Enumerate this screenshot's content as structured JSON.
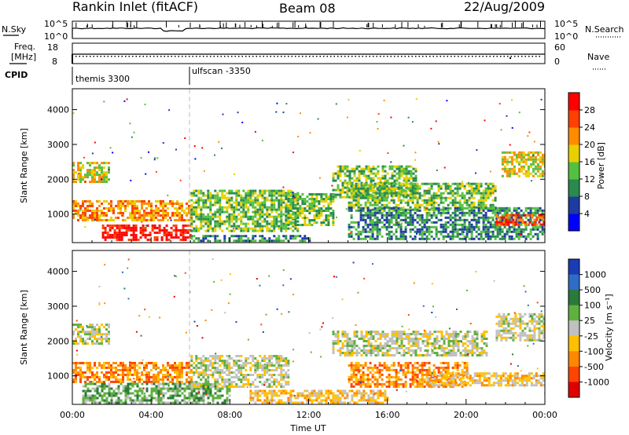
{
  "header": {
    "station": "Rankin Inlet (fitACF)",
    "beam": "Beam 08",
    "date": "22/Aug/2009"
  },
  "strip1": {
    "left_label": "N.Sky",
    "right_label": "N.Search",
    "left_ticks": [
      "10^5",
      "10^0"
    ],
    "right_ticks": [
      "10^5",
      "10^0"
    ]
  },
  "strip2": {
    "left_label_1": "Freq.",
    "left_label_2": "[MHz]",
    "right_label": "Nave",
    "left_ticks": [
      "18",
      "8"
    ],
    "right_ticks": [
      "60",
      "0"
    ]
  },
  "cpid": {
    "label": "CPID",
    "modes": [
      {
        "name": "themis 3300",
        "start_hour": 0
      },
      {
        "name": "ulfscan -3350",
        "start_hour": 6
      }
    ]
  },
  "chart_data": [
    {
      "type": "heatmap",
      "name": "Power",
      "ylabel": "Slant Range [km]",
      "xlabel": "",
      "xlim_hours": [
        0,
        24
      ],
      "ylim_km": [
        180,
        4600
      ],
      "y_ticks": [
        "1000",
        "2000",
        "3000",
        "4000"
      ],
      "colorbar_label": "Power [dB]",
      "colorbar_ticks": [
        "4",
        "8",
        "12",
        "16",
        "20",
        "24",
        "28"
      ],
      "colorbar_colors": [
        "#0000ff",
        "#1e3ca0",
        "#2a8a4e",
        "#55c040",
        "#e8d000",
        "#ff8c00",
        "#ff4000",
        "#ff0000"
      ],
      "echo_regions": [
        {
          "t0": 0.0,
          "t1": 1.8,
          "r0": 1900,
          "r1": 2500,
          "level": 16
        },
        {
          "t0": 0.0,
          "t1": 6.0,
          "r0": 850,
          "r1": 1400,
          "level": 20
        },
        {
          "t0": 1.5,
          "t1": 6.0,
          "r0": 250,
          "r1": 700,
          "level": 28
        },
        {
          "t0": 6.0,
          "t1": 11.5,
          "r0": 500,
          "r1": 1700,
          "level": 12
        },
        {
          "t0": 6.0,
          "t1": 12.0,
          "r0": 200,
          "r1": 400,
          "level": 8
        },
        {
          "t0": 10.8,
          "t1": 13.2,
          "r0": 700,
          "r1": 1600,
          "level": 12
        },
        {
          "t0": 13.2,
          "t1": 17.5,
          "r0": 1500,
          "r1": 2400,
          "level": 12
        },
        {
          "t0": 14.0,
          "t1": 21.5,
          "r0": 1100,
          "r1": 1900,
          "level": 12
        },
        {
          "t0": 14.0,
          "t1": 24.0,
          "r0": 300,
          "r1": 1200,
          "level": 8
        },
        {
          "t0": 21.8,
          "t1": 24.0,
          "r0": 2100,
          "r1": 2800,
          "level": 16
        },
        {
          "t0": 21.5,
          "t1": 24.0,
          "r0": 700,
          "r1": 1000,
          "level": 24
        }
      ]
    },
    {
      "type": "heatmap",
      "name": "Velocity",
      "ylabel": "Slant Range [km]",
      "xlabel": "Time UT",
      "xlim_hours": [
        0,
        24
      ],
      "ylim_km": [
        180,
        4600
      ],
      "y_ticks": [
        "1000",
        "2000",
        "3000",
        "4000"
      ],
      "x_ticks": [
        "00:00",
        "04:00",
        "08:00",
        "12:00",
        "16:00",
        "20:00",
        "00:00"
      ],
      "colorbar_label": "Velocity [m s⁻¹]",
      "colorbar_ticks": [
        "1000",
        "500",
        "100",
        "25",
        "-25",
        "-100",
        "-500",
        "-1000"
      ],
      "colorbar_colors": [
        "#1a3cb4",
        "#2e6cc8",
        "#2a7a3a",
        "#60b040",
        "#c0c0c0",
        "#ffc000",
        "#ff8800",
        "#ff4400",
        "#e00000"
      ],
      "echo_regions": [
        {
          "t0": 0.0,
          "t1": 1.8,
          "r0": 1900,
          "r1": 2500,
          "class": 4
        },
        {
          "t0": 0.0,
          "t1": 6.0,
          "r0": 850,
          "r1": 1400,
          "class": 6
        },
        {
          "t0": 0.5,
          "t1": 8.0,
          "r0": 250,
          "r1": 800,
          "class": 3
        },
        {
          "t0": 6.0,
          "t1": 11.0,
          "r0": 700,
          "r1": 1600,
          "class": 4
        },
        {
          "t0": 9.0,
          "t1": 16.0,
          "r0": 200,
          "r1": 600,
          "class": 5
        },
        {
          "t0": 13.2,
          "t1": 21.0,
          "r0": 1600,
          "r1": 2300,
          "class": 4
        },
        {
          "t0": 14.0,
          "t1": 20.0,
          "r0": 700,
          "r1": 1400,
          "class": 6
        },
        {
          "t0": 18.0,
          "t1": 24.0,
          "r0": 700,
          "r1": 1100,
          "class": 5
        },
        {
          "t0": 21.5,
          "t1": 24.0,
          "r0": 2000,
          "r1": 2800,
          "class": 4
        }
      ]
    }
  ]
}
